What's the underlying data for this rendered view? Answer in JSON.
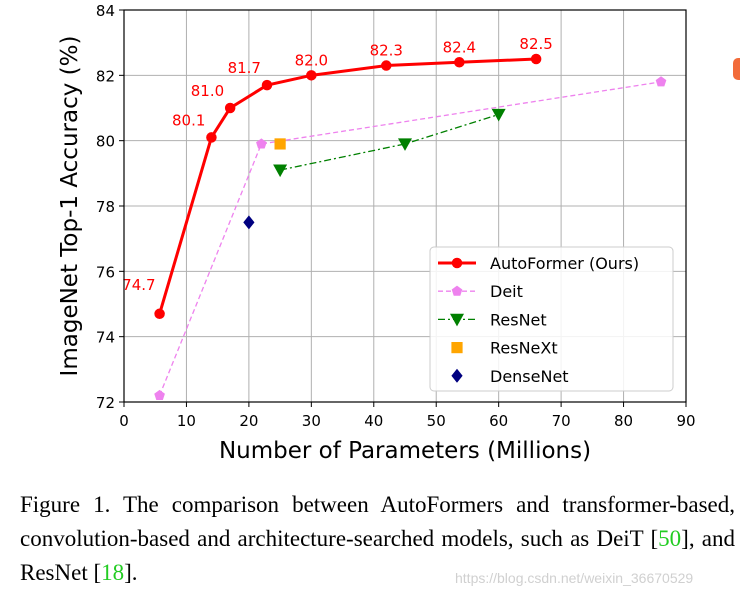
{
  "chart_data": {
    "type": "line",
    "xlabel": "Number of Parameters (Millions)",
    "ylabel": "ImageNet Top-1 Accuracy (%)",
    "xlim": [
      0,
      90
    ],
    "ylim": [
      72,
      84
    ],
    "xticks": [
      0,
      10,
      20,
      30,
      40,
      50,
      60,
      70,
      80,
      90
    ],
    "yticks": [
      72,
      74,
      76,
      78,
      80,
      82,
      84
    ],
    "grid": true,
    "legend_position": "lower-right",
    "series": [
      {
        "name": "AutoFormer (Ours)",
        "color": "#ff0000",
        "marker": "circle",
        "style": "solid",
        "x": [
          5.7,
          14,
          17,
          22.9,
          30,
          42,
          53.7,
          66
        ],
        "y": [
          74.7,
          80.1,
          81.0,
          81.7,
          82.0,
          82.3,
          82.4,
          82.5
        ],
        "labels": [
          "74.7",
          "80.1",
          "81.0",
          "81.7",
          "82.0",
          "82.3",
          "82.4",
          "82.5"
        ]
      },
      {
        "name": "Deit",
        "color": "#ee82ee",
        "marker": "pentagon",
        "style": "dashed",
        "x": [
          5.7,
          22,
          86
        ],
        "y": [
          72.2,
          79.9,
          81.8
        ]
      },
      {
        "name": "ResNet",
        "color": "#008000",
        "marker": "triangle-down",
        "style": "dashdot",
        "x": [
          25,
          45,
          60
        ],
        "y": [
          79.1,
          79.9,
          80.8
        ]
      },
      {
        "name": "ResNeXt",
        "color": "#ffa500",
        "marker": "square",
        "style": "none",
        "x": [
          25
        ],
        "y": [
          79.9
        ]
      },
      {
        "name": "DenseNet",
        "color": "#000080",
        "marker": "diamond",
        "style": "none",
        "x": [
          20
        ],
        "y": [
          77.5
        ]
      }
    ]
  },
  "caption": {
    "text_1": "Figure 1. The comparison between AutoFormers and transformer-based, convolution-based and architecture-searched models, such as DeiT [",
    "ref_1": "50",
    "text_2": "], and ResNet [",
    "ref_2": "18",
    "text_3": "]."
  },
  "watermark": "https://blog.csdn.net/weixin_36670529"
}
